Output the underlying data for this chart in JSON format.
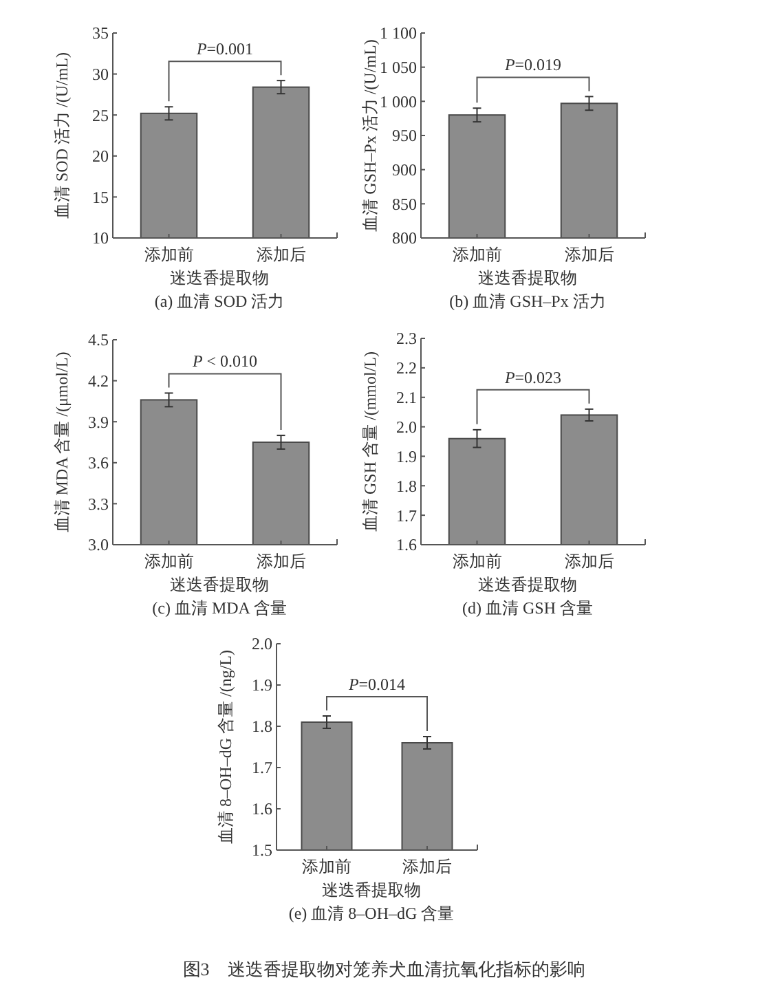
{
  "chart_data": [
    {
      "type": "bar",
      "title": "(a) 血清 SOD 活力",
      "xlabel": "迷迭香提取物",
      "ylabel": "血清 SOD 活力 /(U/mL)",
      "categories": [
        "添加前",
        "添加后"
      ],
      "values": [
        25.2,
        28.4
      ],
      "errors": [
        0.8,
        0.8
      ],
      "color": "#8c8c8c",
      "ylim": [
        10,
        35
      ],
      "yticks": [
        10,
        15,
        20,
        25,
        30,
        35
      ],
      "annotations": [
        "P=0.001"
      ]
    },
    {
      "type": "bar",
      "title": "(b) 血清 GSH–Px 活力",
      "xlabel": "迷迭香提取物",
      "ylabel": "血清 GSH–Px 活力 /(U/mL)",
      "categories": [
        "添加前",
        "添加后"
      ],
      "values": [
        980,
        997
      ],
      "errors": [
        10,
        10
      ],
      "color": "#8c8c8c",
      "ylim": [
        800,
        1100
      ],
      "yticks": [
        800,
        850,
        900,
        950,
        {
          "value": 1000,
          "label": "1 000"
        },
        {
          "value": 1050,
          "label": "1 050"
        },
        {
          "value": 1100,
          "label": "1 100"
        }
      ],
      "annotations": [
        "P=0.019"
      ]
    },
    {
      "type": "bar",
      "title": "(c) 血清 MDA 含量",
      "xlabel": "迷迭香提取物",
      "ylabel": "血清 MDA 含量 /(μmol/L)",
      "categories": [
        "添加前",
        "添加后"
      ],
      "values": [
        4.06,
        3.75
      ],
      "errors": [
        0.05,
        0.05
      ],
      "color": "#8c8c8c",
      "ylim": [
        3.0,
        4.5
      ],
      "yticks": [
        {
          "value": 3.0,
          "label": "3.0"
        },
        3.3,
        3.6,
        3.9,
        4.2,
        4.5
      ],
      "annotations": [
        "P < 0.010"
      ]
    },
    {
      "type": "bar",
      "title": "(d) 血清 GSH 含量",
      "xlabel": "迷迭香提取物",
      "ylabel": "血清 GSH 含量 /(mmol/L)",
      "categories": [
        "添加前",
        "添加后"
      ],
      "values": [
        1.96,
        2.04
      ],
      "errors": [
        0.03,
        0.02
      ],
      "color": "#8c8c8c",
      "ylim": [
        1.6,
        2.3
      ],
      "yticks": [
        1.6,
        1.7,
        1.8,
        1.9,
        {
          "value": 2.0,
          "label": "2.0"
        },
        2.1,
        2.2,
        2.3
      ],
      "annotations": [
        "P=0.023"
      ]
    },
    {
      "type": "bar",
      "title": "(e) 血清 8–OH–dG 含量",
      "xlabel": "迷迭香提取物",
      "ylabel": "血清 8–OH–dG 含量 /(ng/L)",
      "categories": [
        "添加前",
        "添加后"
      ],
      "values": [
        1.81,
        1.76
      ],
      "errors": [
        0.015,
        0.015
      ],
      "color": "#8c8c8c",
      "ylim": [
        1.5,
        2.0
      ],
      "yticks": [
        1.5,
        1.6,
        1.7,
        1.8,
        1.9,
        {
          "value": 2.0,
          "label": "2.0"
        }
      ],
      "annotations": [
        "P=0.014",
        "图3　迷迭香提取物对笼养犬血清抗氧化指标的影响"
      ]
    }
  ]
}
